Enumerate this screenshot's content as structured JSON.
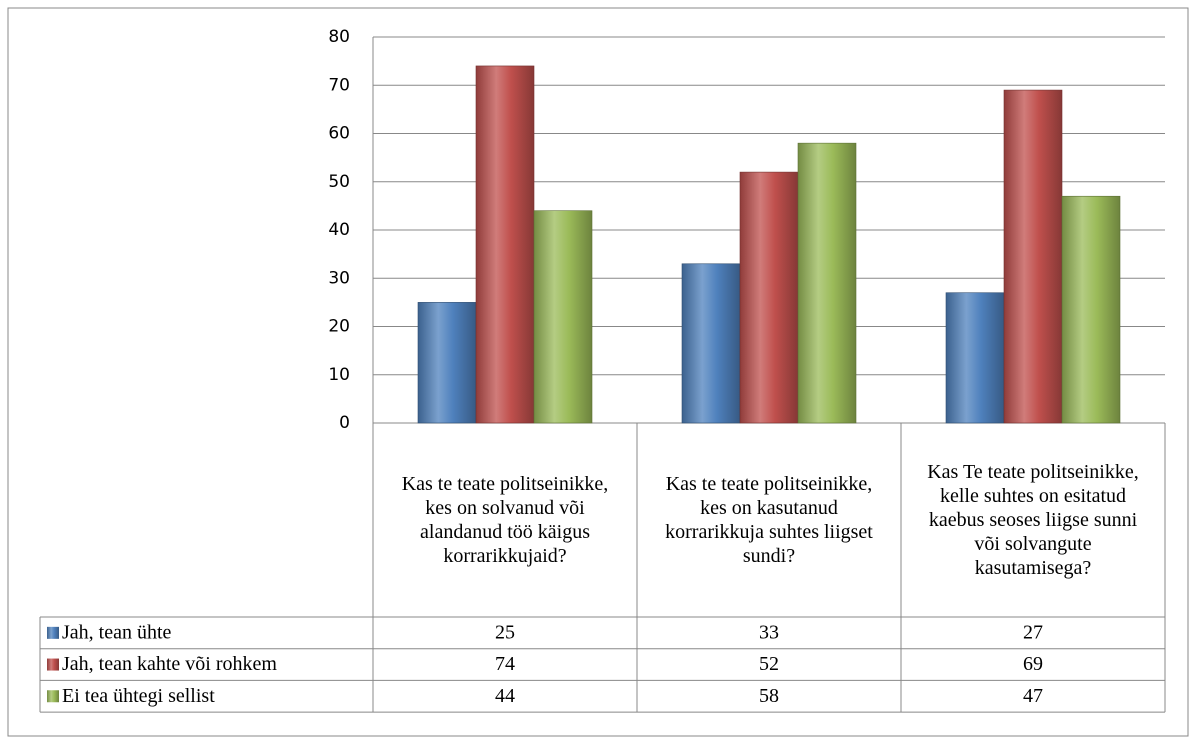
{
  "chart_data": {
    "type": "bar",
    "categories": [
      "Kas te teate politseinikke, kes on solvanud või alandanud töö käigus korrarikkujaid?",
      "Kas te teate politseinikke, kes on kasutanud korrarikkuja suhtes liigset sundi?",
      "Kas Te teate politseinikke, kelle suhtes on esitatud kaebus seoses liigse sunni või solvangute kasutamisega?"
    ],
    "series": [
      {
        "name": "Jah, tean ühte",
        "color": "#4f81bd",
        "values": [
          25,
          33,
          27
        ]
      },
      {
        "name": "Jah, tean kahte või rohkem",
        "color": "#c0504d",
        "values": [
          74,
          52,
          69
        ]
      },
      {
        "name": "Ei tea ühtegi sellist",
        "color": "#9bbb59",
        "values": [
          44,
          58,
          47
        ]
      }
    ],
    "ylim": [
      0,
      80
    ],
    "yticks": [
      0,
      10,
      20,
      30,
      40,
      50,
      60,
      70,
      80
    ],
    "grid": true
  }
}
